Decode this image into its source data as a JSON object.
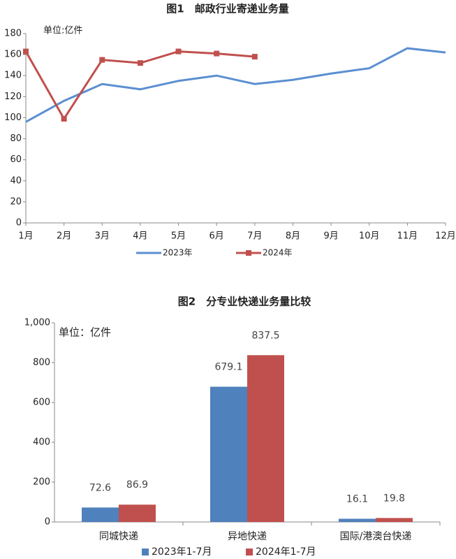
{
  "chart_data": [
    {
      "type": "line",
      "title": "图1　邮政行业寄递业务量",
      "annotation": "单位:亿件",
      "categories": [
        "1月",
        "2月",
        "3月",
        "4月",
        "5月",
        "6月",
        "7月",
        "8月",
        "9月",
        "10月",
        "11月",
        "12月"
      ],
      "series": [
        {
          "name": "2023年",
          "color": "#5b8fd0",
          "values": [
            96,
            116,
            132,
            127,
            135,
            140,
            132,
            136,
            142,
            147,
            166,
            162
          ]
        },
        {
          "name": "2024年",
          "color": "#c0504d",
          "values": [
            163,
            99,
            155,
            152,
            163,
            161,
            158,
            null,
            null,
            null,
            null,
            null
          ]
        }
      ],
      "ylim": [
        0,
        180
      ],
      "yticks": [
        0,
        20,
        40,
        60,
        80,
        100,
        120,
        140,
        160,
        180
      ],
      "legend": "bottom"
    },
    {
      "type": "bar",
      "title": "图2　分专业快递业务量比较",
      "annotation": "单位：亿件",
      "categories": [
        "同城快递",
        "异地快递",
        "国际/港澳台快递"
      ],
      "series": [
        {
          "name": "2023年1-7月",
          "color": "#4f81bd",
          "values": [
            72.6,
            679.1,
            16.1
          ]
        },
        {
          "name": "2024年1-7月",
          "color": "#c0504d",
          "values": [
            86.9,
            837.5,
            19.8
          ]
        }
      ],
      "ylim": [
        0,
        1000
      ],
      "yticks": [
        0,
        200,
        400,
        600,
        800,
        {
          "value": 1000,
          "label": "1,000"
        }
      ],
      "legend": "bottom"
    }
  ]
}
